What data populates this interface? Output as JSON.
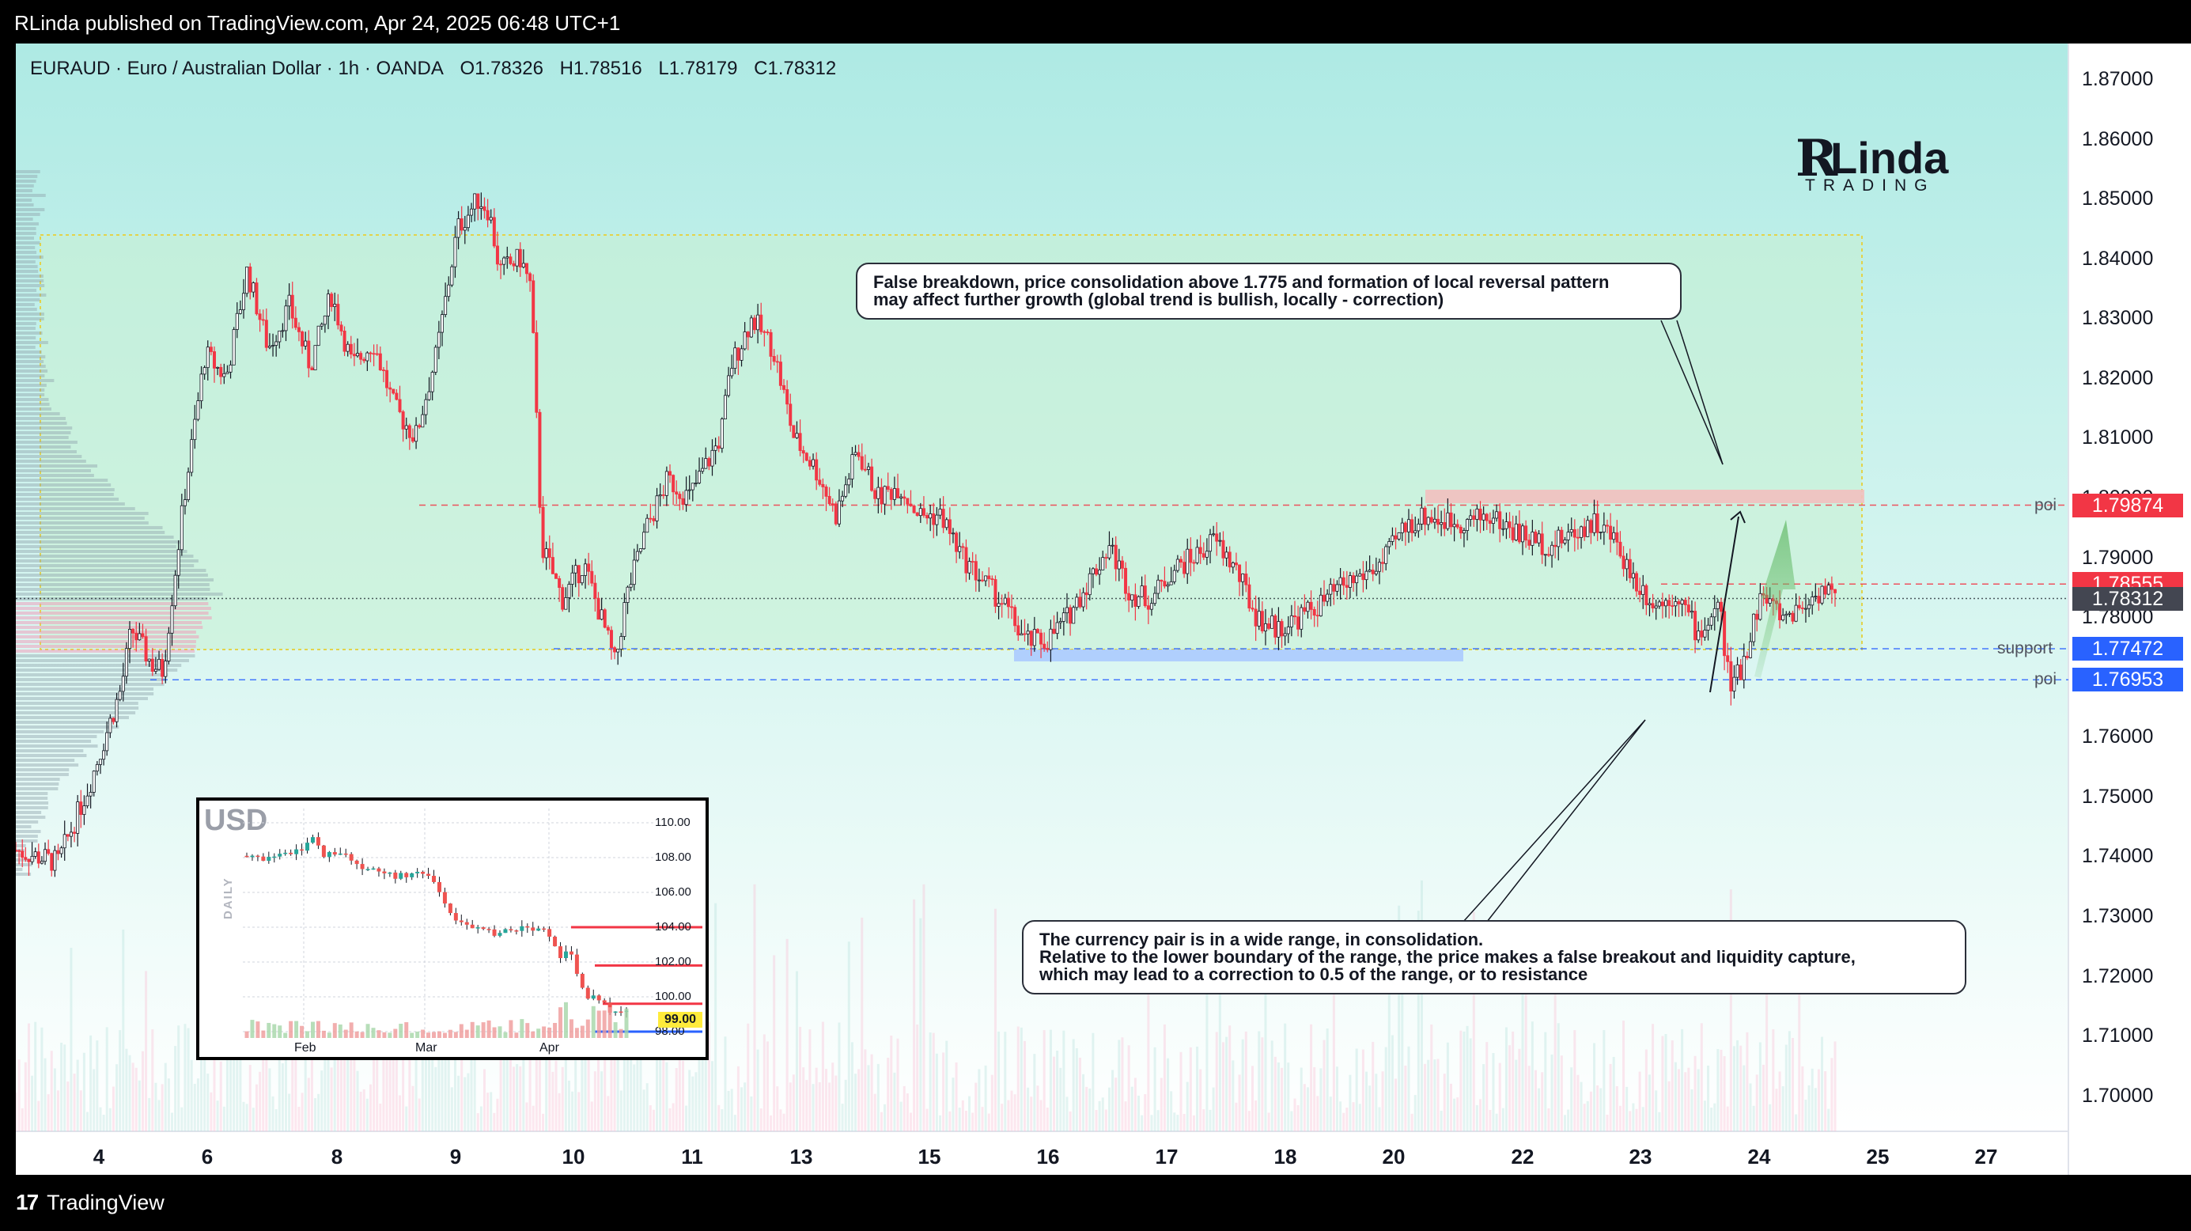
{
  "header": {
    "published": "RLinda published on TradingView.com, Apr 24, 2025 06:48 UTC+1"
  },
  "symbol": {
    "pair": "EURAUD · Euro / Australian Dollar · 1h · OANDA",
    "open": "O1.78326",
    "high": "H1.78516",
    "low": "L1.78179",
    "close": "C1.78312"
  },
  "brand": {
    "r": "R",
    "linda": "Linda",
    "trading": "TRADING"
  },
  "annotations": {
    "top": "False breakdown, price consolidation above 1.775 and formation of local reversal pattern\nmay affect further growth (global trend is bullish, locally - correction)",
    "bottom": "The currency pair is in a wide range, in consolidation.\nRelative to the lower boundary of the range, the price makes a false breakout and liquidity capture,\nwhich may lead to a correction to 0.5 of the range, or to resistance"
  },
  "levels": [
    {
      "name": "poi",
      "price": 1.79874,
      "label": "1.79874",
      "color": "#f23645"
    },
    {
      "name": "",
      "price": 1.78555,
      "label": "1.78555",
      "color": "#f23645"
    },
    {
      "name": "",
      "price": 1.78312,
      "label": "1.78312",
      "color": "#434651"
    },
    {
      "name": "support",
      "price": 1.77472,
      "label": "1.77472",
      "color": "#2962ff"
    },
    {
      "name": "poi",
      "price": 1.76953,
      "label": "1.76953",
      "color": "#2962ff"
    }
  ],
  "footer": {
    "brand": "TradingView"
  },
  "chart_data": [
    {
      "type": "candlestick",
      "symbol": "EURAUD",
      "interval": "1h",
      "ylim": [
        1.695,
        1.875
      ],
      "y_ticks": [
        "1.87000",
        "1.86000",
        "1.85000",
        "1.84000",
        "1.83000",
        "1.82000",
        "1.81000",
        "1.80000",
        "1.79000",
        "1.78000",
        "1.77000",
        "1.76000",
        "1.75000",
        "1.74000",
        "1.73000",
        "1.72000",
        "1.71000",
        "1.70000"
      ],
      "x_ticks": [
        "4",
        "6",
        "8",
        "9",
        "10",
        "11",
        "13",
        "15",
        "16",
        "17",
        "18",
        "20",
        "22",
        "23",
        "24",
        "25",
        "27"
      ],
      "path": [
        [
          0,
          1.741
        ],
        [
          0.02,
          1.739
        ],
        [
          0.035,
          1.752
        ],
        [
          0.05,
          1.768
        ],
        [
          0.055,
          1.778
        ],
        [
          0.065,
          1.772
        ],
        [
          0.07,
          1.771
        ],
        [
          0.08,
          1.8
        ],
        [
          0.09,
          1.824
        ],
        [
          0.1,
          1.82
        ],
        [
          0.11,
          1.838
        ],
        [
          0.12,
          1.825
        ],
        [
          0.13,
          1.832
        ],
        [
          0.14,
          1.822
        ],
        [
          0.15,
          1.834
        ],
        [
          0.16,
          1.822
        ],
        [
          0.17,
          1.826
        ],
        [
          0.18,
          1.815
        ],
        [
          0.19,
          1.81
        ],
        [
          0.2,
          1.824
        ],
        [
          0.21,
          1.845
        ],
        [
          0.22,
          1.85
        ],
        [
          0.225,
          1.848
        ],
        [
          0.23,
          1.838
        ],
        [
          0.24,
          1.84
        ],
        [
          0.245,
          1.835
        ],
        [
          0.25,
          1.792
        ],
        [
          0.26,
          1.783
        ],
        [
          0.27,
          1.789
        ],
        [
          0.28,
          1.778
        ],
        [
          0.285,
          1.772
        ],
        [
          0.29,
          1.783
        ],
        [
          0.3,
          1.795
        ],
        [
          0.31,
          1.803
        ],
        [
          0.32,
          1.8
        ],
        [
          0.335,
          1.81
        ],
        [
          0.34,
          1.822
        ],
        [
          0.35,
          1.83
        ],
        [
          0.36,
          1.825
        ],
        [
          0.37,
          1.81
        ],
        [
          0.38,
          1.805
        ],
        [
          0.39,
          1.797
        ],
        [
          0.4,
          1.808
        ],
        [
          0.41,
          1.8
        ],
        [
          0.42,
          1.802
        ],
        [
          0.43,
          1.797
        ],
        [
          0.44,
          1.797
        ],
        [
          0.45,
          1.79
        ],
        [
          0.46,
          1.786
        ],
        [
          0.47,
          1.782
        ],
        [
          0.48,
          1.776
        ],
        [
          0.49,
          1.776
        ],
        [
          0.5,
          1.78
        ],
        [
          0.51,
          1.786
        ],
        [
          0.52,
          1.792
        ],
        [
          0.53,
          1.784
        ],
        [
          0.54,
          1.783
        ],
        [
          0.55,
          1.788
        ],
        [
          0.56,
          1.79
        ],
        [
          0.57,
          1.793
        ],
        [
          0.58,
          1.788
        ],
        [
          0.59,
          1.78
        ],
        [
          0.6,
          1.778
        ],
        [
          0.61,
          1.78
        ],
        [
          0.62,
          1.782
        ],
        [
          0.63,
          1.785
        ],
        [
          0.64,
          1.787
        ],
        [
          0.65,
          1.789
        ],
        [
          0.66,
          1.795
        ],
        [
          0.67,
          1.797
        ],
        [
          0.68,
          1.796
        ],
        [
          0.69,
          1.796
        ],
        [
          0.7,
          1.797
        ],
        [
          0.71,
          1.795
        ],
        [
          0.72,
          1.793
        ],
        [
          0.73,
          1.792
        ],
        [
          0.74,
          1.794
        ],
        [
          0.75,
          1.796
        ],
        [
          0.76,
          1.793
        ],
        [
          0.77,
          1.786
        ],
        [
          0.78,
          1.782
        ],
        [
          0.79,
          1.784
        ],
        [
          0.8,
          1.777
        ],
        [
          0.81,
          1.782
        ],
        [
          0.815,
          1.768
        ],
        [
          0.82,
          1.771
        ],
        [
          0.83,
          1.784
        ],
        [
          0.84,
          1.78
        ],
        [
          0.85,
          1.782
        ],
        [
          0.86,
          1.785
        ],
        [
          0.865,
          1.783
        ]
      ]
    },
    {
      "type": "candlestick",
      "title": "USD",
      "interval": "DAILY",
      "ylim": [
        97.5,
        110.5
      ],
      "y_ticks": [
        "110.00",
        "108.00",
        "106.00",
        "104.00",
        "102.00",
        "100.00",
        "98.00"
      ],
      "x_ticks": [
        "Feb",
        "Mar",
        "Apr"
      ],
      "last_price": "99.00",
      "path": [
        [
          0,
          108.1
        ],
        [
          0.05,
          107.9
        ],
        [
          0.1,
          108.2
        ],
        [
          0.15,
          108.6
        ],
        [
          0.17,
          109.4
        ],
        [
          0.2,
          108.1
        ],
        [
          0.25,
          108.4
        ],
        [
          0.3,
          107.5
        ],
        [
          0.35,
          107.2
        ],
        [
          0.4,
          106.9
        ],
        [
          0.45,
          107.1
        ],
        [
          0.5,
          106.6
        ],
        [
          0.52,
          105.5
        ],
        [
          0.55,
          104.3
        ],
        [
          0.6,
          103.9
        ],
        [
          0.65,
          103.6
        ],
        [
          0.7,
          103.8
        ],
        [
          0.75,
          104.0
        ],
        [
          0.78,
          103.8
        ],
        [
          0.8,
          103.5
        ],
        [
          0.82,
          102.3
        ],
        [
          0.85,
          102.8
        ],
        [
          0.88,
          100.5
        ],
        [
          0.9,
          99.8
        ],
        [
          0.93,
          100.0
        ],
        [
          0.96,
          99.0
        ],
        [
          1.0,
          99.0
        ]
      ]
    }
  ]
}
